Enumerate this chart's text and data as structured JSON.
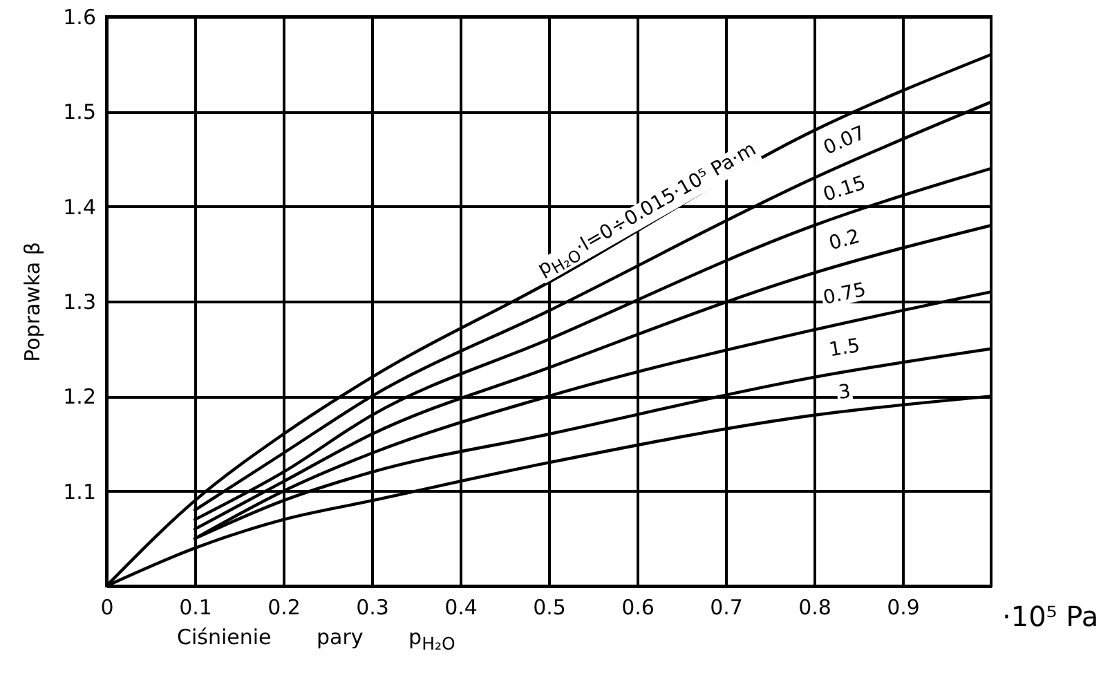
{
  "chart_data": {
    "type": "line",
    "xlabel": "Ciśnienie pary p$_{H₂O}$",
    "ylabel": "Poprawka β",
    "annotations": [
      "·10⁵ Pa"
    ],
    "xlim": [
      0,
      1.0
    ],
    "ylim": [
      1.0,
      1.6
    ],
    "xticks": [
      0,
      0.1,
      0.2,
      0.3,
      0.4,
      0.5,
      0.6,
      0.7,
      0.8,
      0.9
    ],
    "yticks": [
      1.1,
      1.2,
      1.3,
      1.4,
      1.5,
      1.6
    ],
    "grid": true,
    "marker": "none",
    "line_style": "solid",
    "series": [
      {
        "name": "p$_{H₂O}$·l=0÷0.015·10⁵ Pa·m",
        "color": "#000000",
        "x": [
          0,
          0.1,
          0.2,
          0.3,
          0.5,
          0.8,
          1.0
        ],
        "values": [
          1.0,
          1.09,
          1.16,
          1.22,
          1.32,
          1.48,
          1.56
        ]
      },
      {
        "name": "0.07",
        "color": "#000000",
        "x": [
          0.1,
          0.2,
          0.3,
          0.5,
          0.8,
          1.0
        ],
        "values": [
          1.08,
          1.14,
          1.2,
          1.29,
          1.43,
          1.51
        ]
      },
      {
        "name": "0.15",
        "color": "#000000",
        "x": [
          0.1,
          0.2,
          0.3,
          0.5,
          0.8,
          1.0
        ],
        "values": [
          1.07,
          1.12,
          1.18,
          1.26,
          1.38,
          1.44
        ]
      },
      {
        "name": "0.2",
        "color": "#000000",
        "x": [
          0.1,
          0.2,
          0.3,
          0.5,
          0.8,
          1.0
        ],
        "values": [
          1.06,
          1.11,
          1.16,
          1.23,
          1.33,
          1.38
        ]
      },
      {
        "name": "0.75",
        "color": "#000000",
        "x": [
          0.1,
          0.2,
          0.3,
          0.5,
          0.8,
          1.0
        ],
        "values": [
          1.05,
          1.1,
          1.14,
          1.2,
          1.27,
          1.31
        ]
      },
      {
        "name": "1.5",
        "color": "#000000",
        "x": [
          0.1,
          0.2,
          0.3,
          0.5,
          0.8,
          1.0
        ],
        "values": [
          1.05,
          1.09,
          1.12,
          1.16,
          1.22,
          1.25
        ]
      },
      {
        "name": "3",
        "color": "#000000",
        "x": [
          0,
          0.1,
          0.2,
          0.3,
          0.5,
          0.8,
          1.0
        ],
        "values": [
          1.0,
          1.04,
          1.07,
          1.09,
          1.13,
          1.18,
          1.2
        ]
      }
    ]
  }
}
